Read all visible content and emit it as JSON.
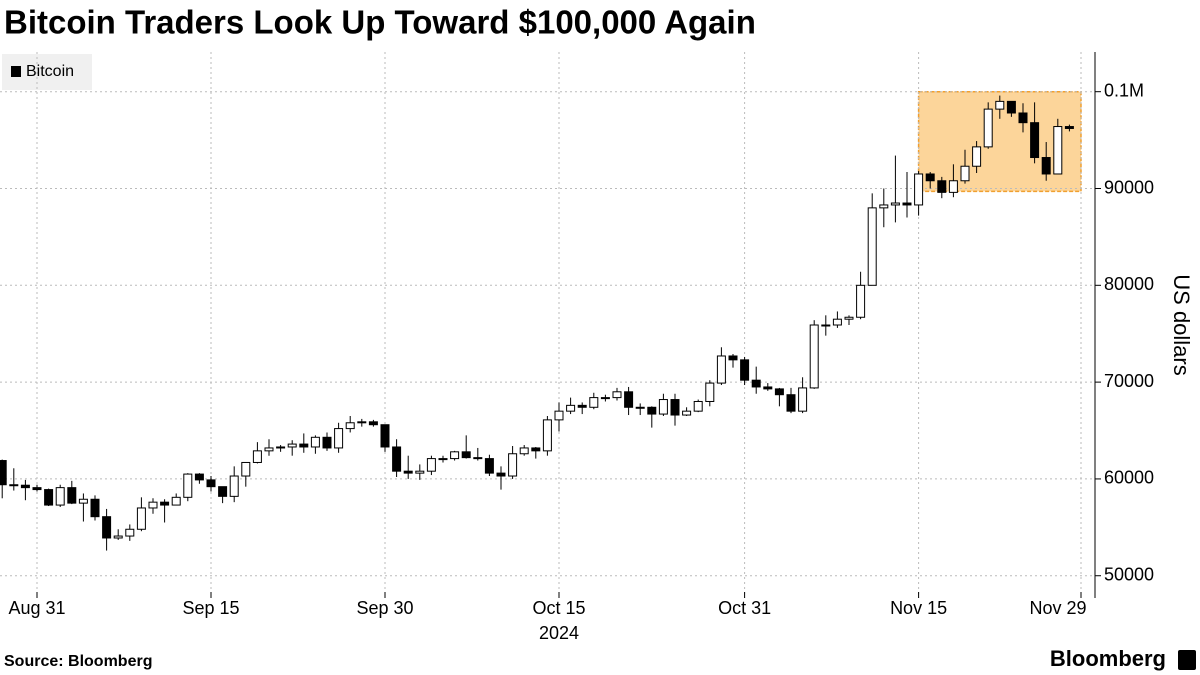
{
  "chart_data": {
    "type": "candlestick",
    "title": "Bitcoin Traders Look Up Toward $100,000 Again",
    "series_name": "Bitcoin",
    "y_axis_label": "US dollars",
    "x_axis_label": "2024",
    "source": "Source: Bloomberg",
    "brand": "Bloomberg",
    "up_color": "#ffffff",
    "down_color": "#000000",
    "highlight_color": "#fcd59a",
    "highlight_x": [
      "2024-11-15",
      "2024-11-29"
    ],
    "highlight_y": [
      89700,
      100000
    ],
    "ylim": [
      47700,
      104100
    ],
    "yticks": [
      50000,
      60000,
      70000,
      80000,
      90000,
      {
        "value": 100000,
        "label": "0.1M"
      }
    ],
    "xticks": [
      {
        "value": "2024-08-31",
        "label": "Aug 31"
      },
      {
        "value": "2024-09-15",
        "label": "Sep 15"
      },
      {
        "value": "2024-09-30",
        "label": "Sep 30"
      },
      {
        "value": "2024-10-15",
        "label": "Oct 15"
      },
      {
        "value": "2024-10-31",
        "label": "Oct 31"
      },
      {
        "value": "2024-11-15",
        "label": "Nov 15"
      },
      {
        "value": "2024-11-29",
        "label": "Nov 29"
      }
    ],
    "grid": true,
    "x": [
      "2024-08-28",
      "2024-08-29",
      "2024-08-30",
      "2024-08-31",
      "2024-09-01",
      "2024-09-02",
      "2024-09-03",
      "2024-09-04",
      "2024-09-05",
      "2024-09-06",
      "2024-09-07",
      "2024-09-08",
      "2024-09-09",
      "2024-09-10",
      "2024-09-11",
      "2024-09-12",
      "2024-09-13",
      "2024-09-14",
      "2024-09-15",
      "2024-09-16",
      "2024-09-17",
      "2024-09-18",
      "2024-09-19",
      "2024-09-20",
      "2024-09-21",
      "2024-09-22",
      "2024-09-23",
      "2024-09-24",
      "2024-09-25",
      "2024-09-26",
      "2024-09-27",
      "2024-09-28",
      "2024-09-29",
      "2024-09-30",
      "2024-10-01",
      "2024-10-02",
      "2024-10-03",
      "2024-10-04",
      "2024-10-05",
      "2024-10-06",
      "2024-10-07",
      "2024-10-08",
      "2024-10-09",
      "2024-10-10",
      "2024-10-11",
      "2024-10-12",
      "2024-10-13",
      "2024-10-14",
      "2024-10-15",
      "2024-10-16",
      "2024-10-17",
      "2024-10-18",
      "2024-10-19",
      "2024-10-20",
      "2024-10-21",
      "2024-10-22",
      "2024-10-23",
      "2024-10-24",
      "2024-10-25",
      "2024-10-26",
      "2024-10-27",
      "2024-10-28",
      "2024-10-29",
      "2024-10-30",
      "2024-10-31",
      "2024-11-01",
      "2024-11-02",
      "2024-11-03",
      "2024-11-04",
      "2024-11-05",
      "2024-11-06",
      "2024-11-07",
      "2024-11-08",
      "2024-11-09",
      "2024-11-10",
      "2024-11-11",
      "2024-11-12",
      "2024-11-13",
      "2024-11-14",
      "2024-11-15",
      "2024-11-16",
      "2024-11-17",
      "2024-11-18",
      "2024-11-19",
      "2024-11-20",
      "2024-11-21",
      "2024-11-22",
      "2024-11-23",
      "2024-11-24",
      "2024-11-25",
      "2024-11-26",
      "2024-11-27",
      "2024-11-28"
    ],
    "open": [
      61900,
      59400,
      59350,
      59100,
      58900,
      57300,
      59100,
      57500,
      57900,
      56100,
      53900,
      54100,
      54800,
      57000,
      57600,
      57300,
      58100,
      60500,
      59900,
      59200,
      58200,
      60300,
      61700,
      62900,
      63200,
      63300,
      63600,
      63300,
      64300,
      63200,
      65200,
      65800,
      65900,
      65600,
      63300,
      60800,
      60600,
      60800,
      62100,
      62100,
      62800,
      62200,
      62100,
      60600,
      60300,
      62600,
      63200,
      62900,
      66100,
      67000,
      67600,
      67400,
      68400,
      68400,
      69000,
      67400,
      67400,
      66700,
      68200,
      66600,
      67000,
      68000,
      69900,
      72700,
      72300,
      70200,
      69500,
      69300,
      68700,
      67000,
      69400,
      75900,
      75900,
      76500,
      76700,
      80000,
      88000,
      88300,
      88500,
      88300,
      91500,
      90800,
      89600,
      90800,
      92300,
      94300,
      98200,
      99000,
      97800,
      96800,
      93200,
      91500,
      96400
    ],
    "high": [
      62000,
      61100,
      59900,
      59400,
      59000,
      59400,
      59800,
      58500,
      58300,
      56900,
      54800,
      55300,
      58100,
      58000,
      57900,
      58500,
      60600,
      60600,
      60300,
      59200,
      61300,
      61700,
      63800,
      64100,
      63500,
      64000,
      64700,
      64500,
      64800,
      65800,
      66500,
      66200,
      66100,
      65600,
      64100,
      62400,
      61500,
      62400,
      62400,
      62900,
      64500,
      63200,
      62500,
      61300,
      63400,
      63500,
      63300,
      66500,
      67900,
      68400,
      67900,
      68900,
      68700,
      69400,
      69500,
      67800,
      67500,
      68800,
      68800,
      67400,
      68200,
      70200,
      73600,
      72900,
      72600,
      71600,
      69900,
      69400,
      69400,
      70500,
      76400,
      76900,
      77300,
      76900,
      81400,
      89500,
      90000,
      93400,
      91700,
      91800,
      91700,
      91200,
      92500,
      94000,
      94900,
      98900,
      99600,
      99000,
      98800,
      98900,
      94800,
      97200,
      96600
    ],
    "low": [
      58000,
      58800,
      57800,
      58700,
      57200,
      57100,
      57400,
      55600,
      55700,
      52600,
      53700,
      53600,
      54600,
      56400,
      55500,
      57300,
      57700,
      59500,
      58700,
      57500,
      57600,
      59200,
      61600,
      62400,
      62800,
      62400,
      62700,
      62600,
      62900,
      62700,
      64800,
      65400,
      65400,
      62800,
      60200,
      60000,
      59900,
      60400,
      61700,
      61900,
      62100,
      61900,
      60300,
      58900,
      60000,
      62400,
      62100,
      62400,
      64900,
      66700,
      66700,
      67200,
      68000,
      68100,
      66600,
      66600,
      65300,
      66500,
      65500,
      66500,
      66900,
      67500,
      69700,
      71500,
      69700,
      68800,
      69100,
      67500,
      66800,
      66800,
      69300,
      74800,
      75600,
      75900,
      76500,
      80000,
      86000,
      86500,
      87000,
      87200,
      90000,
      89000,
      89100,
      90500,
      91600,
      94100,
      97200,
      97400,
      95800,
      92600,
      90800,
      91500,
      95900
    ],
    "close": [
      59400,
      59350,
      59100,
      58900,
      57300,
      59100,
      57500,
      57900,
      56100,
      53900,
      54100,
      54800,
      57000,
      57600,
      57300,
      58100,
      60500,
      59900,
      59200,
      58200,
      60300,
      61700,
      62900,
      63200,
      63300,
      63600,
      63300,
      64300,
      63200,
      65200,
      65800,
      65900,
      65600,
      63300,
      60800,
      60600,
      60800,
      62100,
      62100,
      62800,
      62200,
      62100,
      60600,
      60300,
      62600,
      63200,
      62900,
      66100,
      67000,
      67600,
      67400,
      68400,
      68400,
      69000,
      67400,
      67400,
      66700,
      68200,
      66600,
      67000,
      68000,
      69900,
      72700,
      72300,
      70200,
      69500,
      69300,
      68700,
      67000,
      69400,
      75900,
      75900,
      76500,
      76700,
      80000,
      88000,
      88300,
      88500,
      88300,
      91500,
      90800,
      89600,
      90800,
      92300,
      94300,
      98200,
      99000,
      97800,
      96800,
      93200,
      91500,
      96400,
      96200
    ]
  }
}
